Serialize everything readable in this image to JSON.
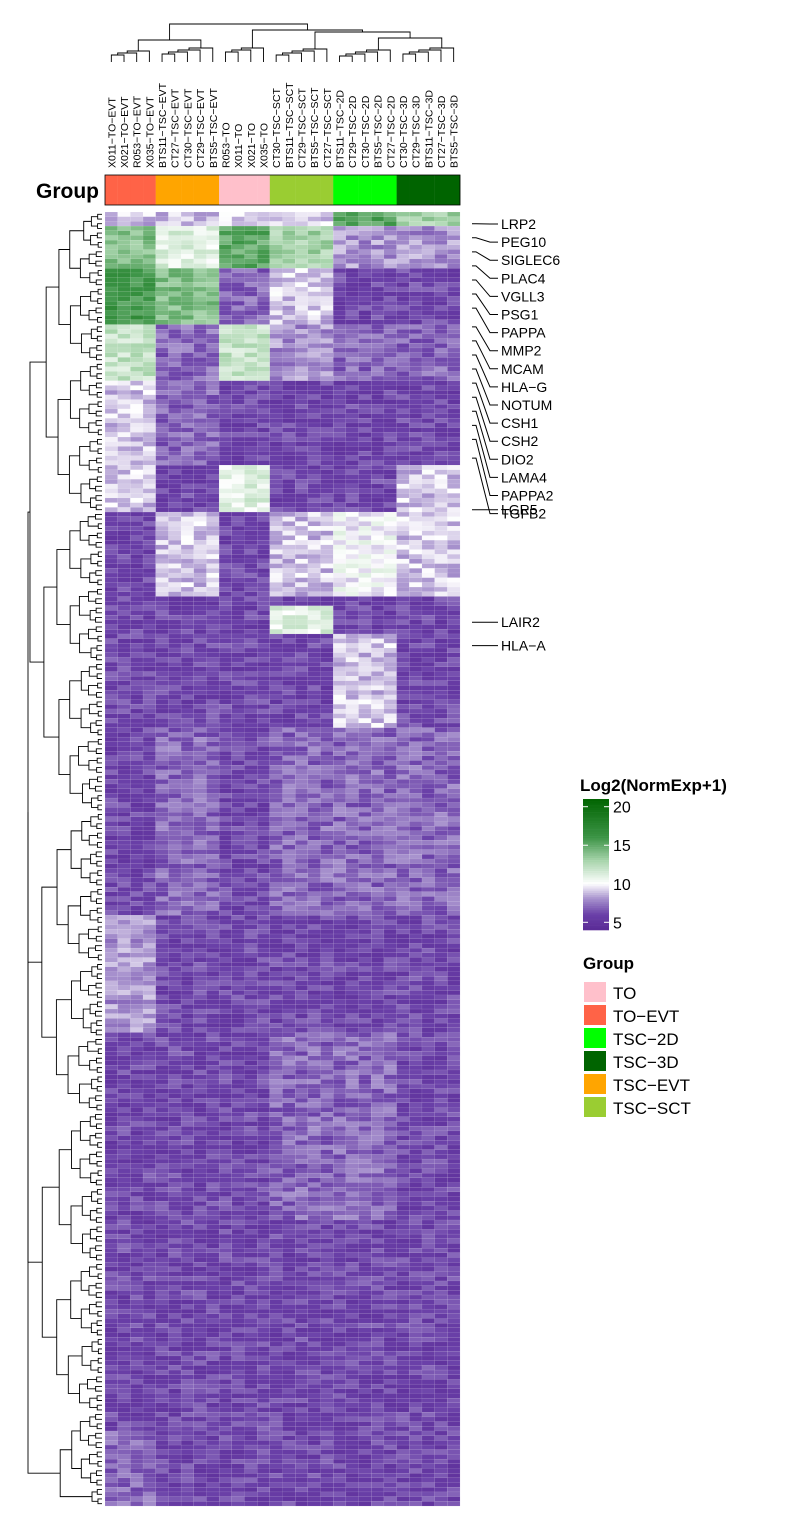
{
  "chart_data": {
    "type": "heatmap",
    "annotation_title": "Group",
    "columns": [
      {
        "label": "X011−TO−EVT",
        "group": "TO-EVT"
      },
      {
        "label": "X021−TO−EVT",
        "group": "TO-EVT"
      },
      {
        "label": "R053−TO−EVT",
        "group": "TO-EVT"
      },
      {
        "label": "X035−TO−EVT",
        "group": "TO-EVT"
      },
      {
        "label": "BTS11−TSC−EVT",
        "group": "TSC-EVT"
      },
      {
        "label": "CT27−TSC−EVT",
        "group": "TSC-EVT"
      },
      {
        "label": "CT30−TSC−EVT",
        "group": "TSC-EVT"
      },
      {
        "label": "CT29−TSC−EVT",
        "group": "TSC-EVT"
      },
      {
        "label": "BTS5−TSC−EVT",
        "group": "TSC-EVT"
      },
      {
        "label": "R053−TO",
        "group": "TO"
      },
      {
        "label": "X011−TO",
        "group": "TO"
      },
      {
        "label": "X021−TO",
        "group": "TO"
      },
      {
        "label": "X035−TO",
        "group": "TO"
      },
      {
        "label": "CT30−TSC−SCT",
        "group": "TSC-SCT"
      },
      {
        "label": "BTS11−TSC−SCT",
        "group": "TSC-SCT"
      },
      {
        "label": "CT29−TSC−SCT",
        "group": "TSC-SCT"
      },
      {
        "label": "BTS5−TSC−SCT",
        "group": "TSC-SCT"
      },
      {
        "label": "CT27−TSC−SCT",
        "group": "TSC-SCT"
      },
      {
        "label": "BTS11−TSC−2D",
        "group": "TSC-2D"
      },
      {
        "label": "CT29−TSC−2D",
        "group": "TSC-2D"
      },
      {
        "label": "CT30−TSC−2D",
        "group": "TSC-2D"
      },
      {
        "label": "BTS5−TSC−2D",
        "group": "TSC-2D"
      },
      {
        "label": "CT27−TSC−2D",
        "group": "TSC-2D"
      },
      {
        "label": "CT30−TSC−3D",
        "group": "TSC-3D"
      },
      {
        "label": "CT29−TSC−3D",
        "group": "TSC-3D"
      },
      {
        "label": "BTS11−TSC−3D",
        "group": "TSC-3D"
      },
      {
        "label": "CT27−TSC−3D",
        "group": "TSC-3D"
      },
      {
        "label": "BTS5−TSC−3D",
        "group": "TSC-3D"
      }
    ],
    "groups": [
      {
        "name": "TO",
        "label": "TO",
        "color": "#ffc0cb"
      },
      {
        "name": "TO-EVT",
        "label": "TO−EVT",
        "color": "#ff6347"
      },
      {
        "name": "TSC-2D",
        "label": "TSC−2D",
        "color": "#00ff00"
      },
      {
        "name": "TSC-3D",
        "label": "TSC−3D",
        "color": "#006400"
      },
      {
        "name": "TSC-EVT",
        "label": "TSC−EVT",
        "color": "#ffa500"
      },
      {
        "name": "TSC-SCT",
        "label": "TSC−SCT",
        "color": "#9acd32"
      }
    ],
    "row_count": 276,
    "gene_labels": [
      {
        "label": "LRP2",
        "row": 2
      },
      {
        "label": "PEG10",
        "row": 5
      },
      {
        "label": "SIGLEC6",
        "row": 8
      },
      {
        "label": "PLAC4",
        "row": 11
      },
      {
        "label": "VGLL3",
        "row": 14
      },
      {
        "label": "PSG1",
        "row": 17
      },
      {
        "label": "PAPPA",
        "row": 20
      },
      {
        "label": "MMP2",
        "row": 24
      },
      {
        "label": "MCAM",
        "row": 27
      },
      {
        "label": "HLA−G",
        "row": 30
      },
      {
        "label": "NOTUM",
        "row": 33
      },
      {
        "label": "CSH1",
        "row": 36
      },
      {
        "label": "CSH2",
        "row": 39
      },
      {
        "label": "DIO2",
        "row": 42
      },
      {
        "label": "LAMA4",
        "row": 45
      },
      {
        "label": "PAPPA2",
        "row": 48
      },
      {
        "label": "TGFB2",
        "row": 52
      },
      {
        "label": "LGR5",
        "row": 63
      },
      {
        "label": "LAIR2",
        "row": 87
      },
      {
        "label": "HLA−A",
        "row": 92
      }
    ],
    "color_scale": {
      "title": "Log2(NormExp+1)",
      "min": 4,
      "max": 21,
      "ticks": [
        20,
        15,
        10,
        5
      ],
      "tick_labels": [
        "20",
        "15",
        "10",
        "5"
      ],
      "stops": [
        {
          "value": 4,
          "color": "#5a2a96"
        },
        {
          "value": 6,
          "color": "#6a40a8"
        },
        {
          "value": 8,
          "color": "#a58fcc"
        },
        {
          "value": 10,
          "color": "#ffffff"
        },
        {
          "value": 13,
          "color": "#a7d4ab"
        },
        {
          "value": 16,
          "color": "#3c9446"
        },
        {
          "value": 21,
          "color": "#006400"
        }
      ]
    },
    "blocks": [
      {
        "rows": [
          0,
          6
        ],
        "cols": [
          0,
          12
        ],
        "value": 9
      },
      {
        "rows": [
          0,
          6
        ],
        "cols": [
          13,
          17
        ],
        "value": 9
      },
      {
        "rows": [
          0,
          6
        ],
        "cols": [
          18,
          22
        ],
        "value": 15
      },
      {
        "rows": [
          0,
          6
        ],
        "cols": [
          23,
          27
        ],
        "value": 13
      },
      {
        "rows": [
          3,
          12
        ],
        "cols": [
          0,
          3
        ],
        "value": 14
      },
      {
        "rows": [
          3,
          12
        ],
        "cols": [
          4,
          8
        ],
        "value": 11
      },
      {
        "rows": [
          3,
          12
        ],
        "cols": [
          9,
          12
        ],
        "value": 15
      },
      {
        "rows": [
          3,
          12
        ],
        "cols": [
          13,
          17
        ],
        "value": 13
      },
      {
        "rows": [
          3,
          12
        ],
        "cols": [
          18,
          27
        ],
        "value": 8
      },
      {
        "rows": [
          12,
          24
        ],
        "cols": [
          0,
          3
        ],
        "value": 16
      },
      {
        "rows": [
          12,
          24
        ],
        "cols": [
          4,
          8
        ],
        "value": 14
      },
      {
        "rows": [
          12,
          24
        ],
        "cols": [
          9,
          12
        ],
        "value": 7
      },
      {
        "rows": [
          12,
          24
        ],
        "cols": [
          13,
          17
        ],
        "value": 9
      },
      {
        "rows": [
          12,
          24
        ],
        "cols": [
          18,
          27
        ],
        "value": 6
      },
      {
        "rows": [
          24,
          36
        ],
        "cols": [
          0,
          3
        ],
        "value": 12
      },
      {
        "rows": [
          24,
          36
        ],
        "cols": [
          4,
          8
        ],
        "value": 7
      },
      {
        "rows": [
          24,
          36
        ],
        "cols": [
          9,
          12
        ],
        "value": 12
      },
      {
        "rows": [
          24,
          36
        ],
        "cols": [
          13,
          17
        ],
        "value": 8
      },
      {
        "rows": [
          24,
          36
        ],
        "cols": [
          18,
          27
        ],
        "value": 7
      },
      {
        "rows": [
          36,
          54
        ],
        "cols": [
          0,
          3
        ],
        "value": 9
      },
      {
        "rows": [
          36,
          54
        ],
        "cols": [
          4,
          8
        ],
        "value": 7
      },
      {
        "rows": [
          36,
          54
        ],
        "cols": [
          9,
          12
        ],
        "value": 6
      },
      {
        "rows": [
          36,
          54
        ],
        "cols": [
          13,
          27
        ],
        "value": 6
      },
      {
        "rows": [
          54,
          64
        ],
        "cols": [
          0,
          3
        ],
        "value": 9
      },
      {
        "rows": [
          54,
          64
        ],
        "cols": [
          9,
          12
        ],
        "value": 11
      },
      {
        "rows": [
          54,
          64
        ],
        "cols": [
          23,
          27
        ],
        "value": 9
      },
      {
        "rows": [
          64,
          82
        ],
        "cols": [
          4,
          8
        ],
        "value": 9
      },
      {
        "rows": [
          64,
          82
        ],
        "cols": [
          13,
          17
        ],
        "value": 9
      },
      {
        "rows": [
          64,
          82
        ],
        "cols": [
          18,
          22
        ],
        "value": 10
      },
      {
        "rows": [
          64,
          82
        ],
        "cols": [
          23,
          27
        ],
        "value": 9
      },
      {
        "rows": [
          84,
          90
        ],
        "cols": [
          13,
          17
        ],
        "value": 11
      },
      {
        "rows": [
          90,
          110
        ],
        "cols": [
          18,
          22
        ],
        "value": 9
      },
      {
        "rows": [
          110,
          150
        ],
        "cols": [
          4,
          8
        ],
        "value": 7
      },
      {
        "rows": [
          110,
          150
        ],
        "cols": [
          13,
          17
        ],
        "value": 7
      },
      {
        "rows": [
          110,
          150
        ],
        "cols": [
          18,
          27
        ],
        "value": 7
      },
      {
        "rows": [
          150,
          175
        ],
        "cols": [
          0,
          3
        ],
        "value": 8
      },
      {
        "rows": [
          175,
          215
        ],
        "cols": [
          13,
          17
        ],
        "value": 7
      },
      {
        "rows": [
          175,
          215
        ],
        "cols": [
          18,
          22
        ],
        "value": 7
      },
      {
        "rows": [
          260,
          276
        ],
        "cols": [
          0,
          3
        ],
        "value": 7
      }
    ]
  }
}
